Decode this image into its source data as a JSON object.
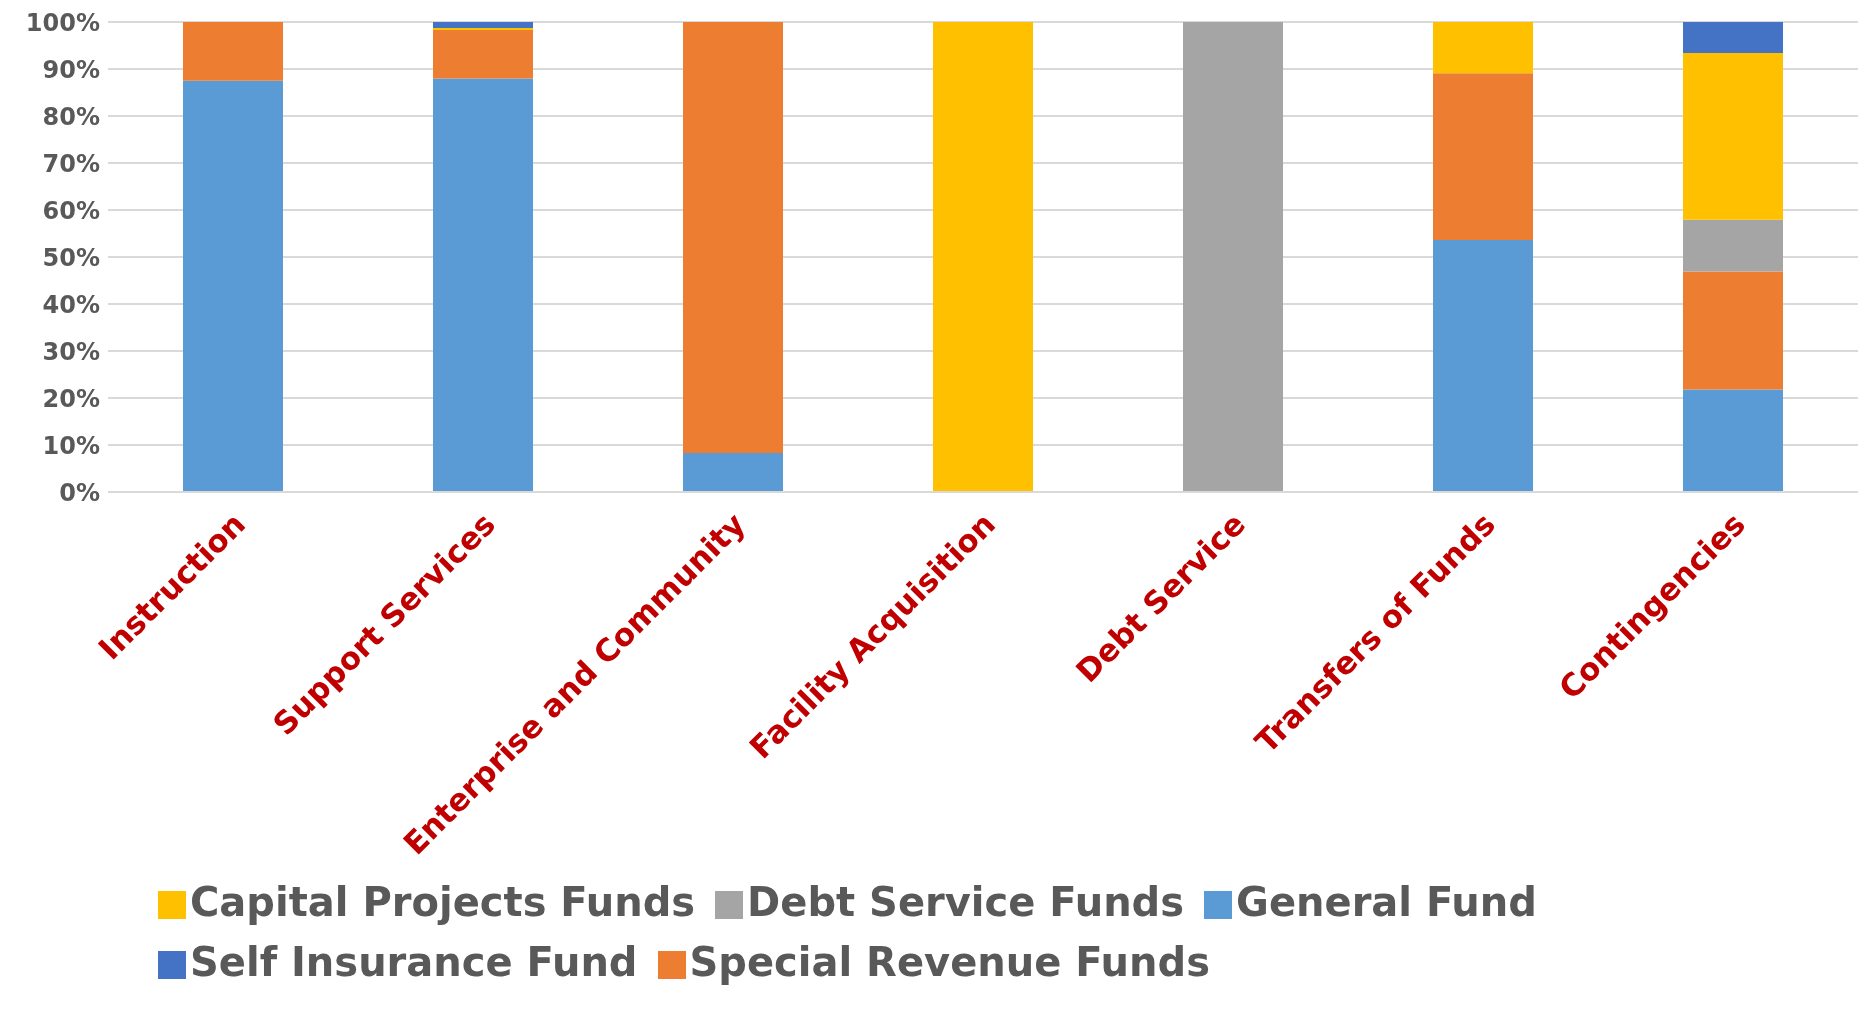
{
  "chart_data": {
    "type": "bar",
    "stacked": true,
    "categories": [
      "Instruction",
      "Support Services",
      "Enterprise and Community",
      "Facility Acquisition",
      "Debt Service",
      "Transfers of Funds",
      "Contingencies"
    ],
    "series": [
      {
        "name": "General Fund",
        "color": "#5b9bd5",
        "values": [
          87.5,
          88,
          8.3,
          0,
          0,
          53.6,
          21.8
        ]
      },
      {
        "name": "Special Revenue Funds",
        "color": "#ed7d31",
        "values": [
          12.5,
          10.3,
          91.7,
          0,
          0,
          35.5,
          25.1
        ]
      },
      {
        "name": "Debt Service Funds",
        "color": "#a5a5a5",
        "values": [
          0,
          0,
          0,
          0,
          100,
          0,
          11
        ]
      },
      {
        "name": "Capital Projects Funds",
        "color": "#ffc000",
        "values": [
          0,
          0.4,
          0,
          100,
          0,
          10.9,
          35.5
        ]
      },
      {
        "name": "Self Insurance Fund",
        "color": "#4472c4",
        "values": [
          0,
          1.3,
          0,
          0,
          0,
          0,
          6.6
        ]
      }
    ],
    "ylim": [
      0,
      100
    ],
    "yticks": [
      {
        "value": 0,
        "label": "0%"
      },
      {
        "value": 10,
        "label": "10%"
      },
      {
        "value": 20,
        "label": "20%"
      },
      {
        "value": 30,
        "label": "30%"
      },
      {
        "value": 40,
        "label": "40%"
      },
      {
        "value": 50,
        "label": "50%"
      },
      {
        "value": 60,
        "label": "60%"
      },
      {
        "value": 70,
        "label": "70%"
      },
      {
        "value": 80,
        "label": "80%"
      },
      {
        "value": 90,
        "label": "90%"
      },
      {
        "value": 100,
        "label": "100%"
      }
    ],
    "grid": "y",
    "legend": "bottom"
  }
}
